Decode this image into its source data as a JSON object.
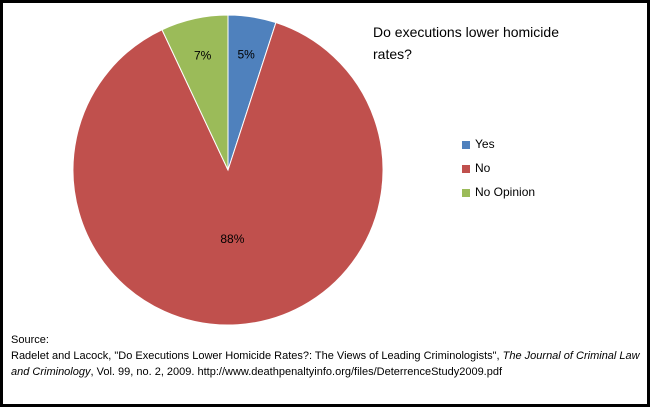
{
  "chart_data": {
    "type": "pie",
    "title": "Do executions lower homicide rates?",
    "categories": [
      "Yes",
      "No",
      "No Opinion"
    ],
    "values": [
      5,
      88,
      7
    ],
    "value_labels": [
      "5%",
      "88%",
      "7%"
    ],
    "colors": [
      "#4f81bd",
      "#c0504d",
      "#9bbb59"
    ],
    "legend": "right"
  },
  "source": {
    "label": "Source:",
    "parts": [
      "Radelet and Lacock, \"Do Executions Lower Homicide Rates?: The Views of Leading Criminologists\", ",
      "The Journal of Criminal Law and Criminology",
      ", Vol. 99, no. 2, 2009.  http://www.deathpenaltyinfo.org/files/DeterrenceStudy2009.pdf"
    ]
  }
}
